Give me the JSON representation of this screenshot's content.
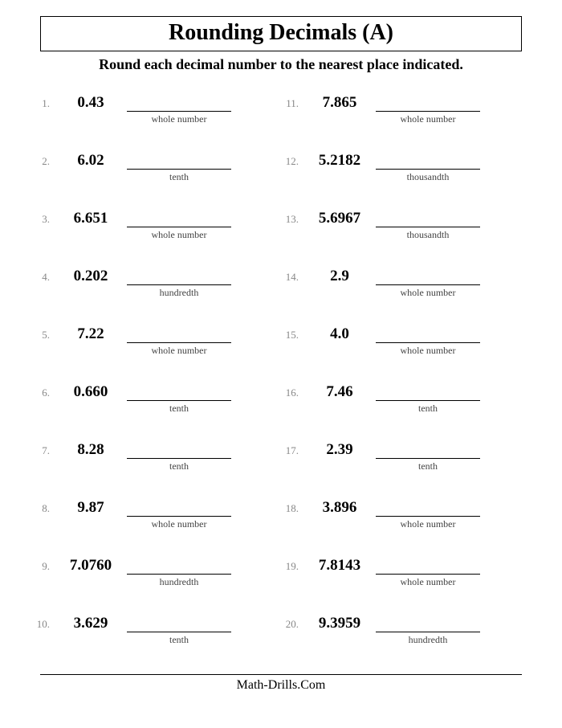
{
  "title": "Rounding Decimals (A)",
  "instruction": "Round each decimal number to the nearest place indicated.",
  "footer": "Math-Drills.Com",
  "colors": {
    "num": "#888888",
    "text": "#000000",
    "bg": "#ffffff"
  },
  "fonts": {
    "title_pt": 28,
    "instruction_pt": 18,
    "value_pt": 19,
    "num_pt": 13,
    "place_pt": 12,
    "footer_pt": 16
  },
  "left": [
    {
      "n": "1.",
      "v": "0.43",
      "p": "whole number"
    },
    {
      "n": "2.",
      "v": "6.02",
      "p": "tenth"
    },
    {
      "n": "3.",
      "v": "6.651",
      "p": "whole number"
    },
    {
      "n": "4.",
      "v": "0.202",
      "p": "hundredth"
    },
    {
      "n": "5.",
      "v": "7.22",
      "p": "whole number"
    },
    {
      "n": "6.",
      "v": "0.660",
      "p": "tenth"
    },
    {
      "n": "7.",
      "v": "8.28",
      "p": "tenth"
    },
    {
      "n": "8.",
      "v": "9.87",
      "p": "whole number"
    },
    {
      "n": "9.",
      "v": "7.0760",
      "p": "hundredth"
    },
    {
      "n": "10.",
      "v": "3.629",
      "p": "tenth"
    }
  ],
  "right": [
    {
      "n": "11.",
      "v": "7.865",
      "p": "whole number"
    },
    {
      "n": "12.",
      "v": "5.2182",
      "p": "thousandth"
    },
    {
      "n": "13.",
      "v": "5.6967",
      "p": "thousandth"
    },
    {
      "n": "14.",
      "v": "2.9",
      "p": "whole number"
    },
    {
      "n": "15.",
      "v": "4.0",
      "p": "whole number"
    },
    {
      "n": "16.",
      "v": "7.46",
      "p": "tenth"
    },
    {
      "n": "17.",
      "v": "2.39",
      "p": "tenth"
    },
    {
      "n": "18.",
      "v": "3.896",
      "p": "whole number"
    },
    {
      "n": "19.",
      "v": "7.8143",
      "p": "whole number"
    },
    {
      "n": "20.",
      "v": "9.3959",
      "p": "hundredth"
    }
  ]
}
